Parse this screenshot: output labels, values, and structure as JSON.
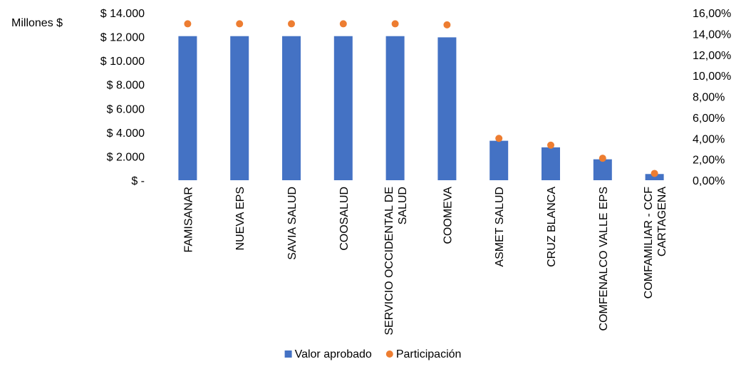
{
  "chart_data": {
    "type": "bar",
    "y_unit_label": "Millones  $",
    "categories": [
      [
        "FAMISANAR"
      ],
      [
        "NUEVA EPS"
      ],
      [
        "SAVIA SALUD"
      ],
      [
        "COOSALUD"
      ],
      [
        "SERVICIO OCCIDENTAL DE",
        "SALUD"
      ],
      [
        "COOMEVA"
      ],
      [
        "ASMET SALUD"
      ],
      [
        "CRUZ BLANCA"
      ],
      [
        "COMFENALCO VALLE EPS"
      ],
      [
        "COMFAMILIAR - CCF",
        "CARTAGENA"
      ]
    ],
    "series": [
      {
        "name": "Valor aprobado",
        "axis": "left",
        "type": "bar",
        "color": "#4472C4",
        "values": [
          12050,
          12050,
          12050,
          12050,
          12050,
          11950,
          3300,
          2750,
          1750,
          520
        ]
      },
      {
        "name": "Participación",
        "axis": "right",
        "type": "scatter",
        "color": "#ED7D31",
        "values": [
          14.95,
          14.95,
          14.95,
          14.95,
          14.95,
          14.85,
          4.0,
          3.35,
          2.1,
          0.65
        ]
      }
    ],
    "y_left": {
      "min": 0,
      "max": 14000,
      "ticks": [
        0,
        2000,
        4000,
        6000,
        8000,
        10000,
        12000,
        14000
      ],
      "tick_labels": [
        "$ -",
        "$ 2.000",
        "$ 4.000",
        "$ 6.000",
        "$ 8.000",
        "$ 10.000",
        "$ 12.000",
        "$ 14.000"
      ]
    },
    "y_right": {
      "min": 0,
      "max": 16,
      "ticks": [
        0,
        2,
        4,
        6,
        8,
        10,
        12,
        14,
        16
      ],
      "tick_labels": [
        "0,00%",
        "2,00%",
        "4,00%",
        "6,00%",
        "8,00%",
        "10,00%",
        "12,00%",
        "14,00%",
        "16,00%"
      ]
    },
    "grid": false,
    "legend": {
      "position": "bottom",
      "items": [
        "Valor aprobado",
        "Participación"
      ]
    }
  }
}
